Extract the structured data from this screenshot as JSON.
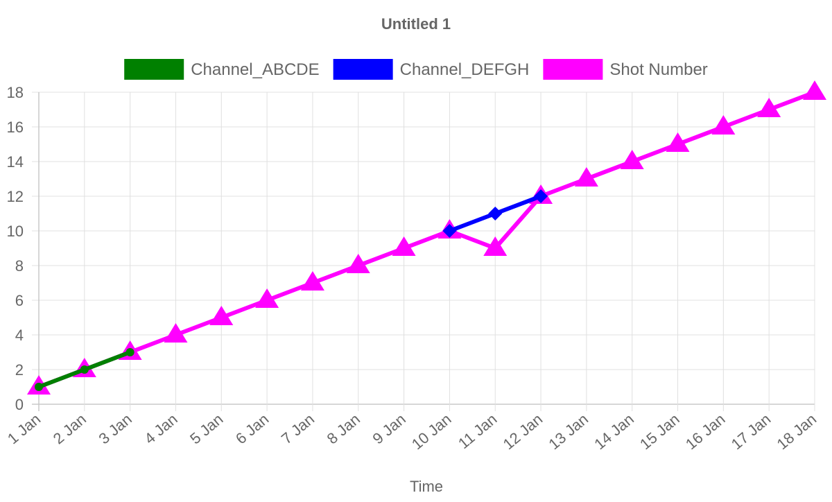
{
  "chart_data": {
    "type": "line",
    "title": "Untitled 1",
    "xlabel": "Time",
    "ylabel": "",
    "ylim": [
      0,
      18
    ],
    "y_ticks": [
      0,
      2,
      4,
      6,
      8,
      10,
      12,
      14,
      16,
      18
    ],
    "categories": [
      "1 Jan",
      "2 Jan",
      "3 Jan",
      "4 Jan",
      "5 Jan",
      "6 Jan",
      "7 Jan",
      "8 Jan",
      "9 Jan",
      "10 Jan",
      "11 Jan",
      "12 Jan",
      "13 Jan",
      "14 Jan",
      "15 Jan",
      "16 Jan",
      "17 Jan",
      "18 Jan"
    ],
    "grid": true,
    "legend_position": "top",
    "series": [
      {
        "name": "Shot Number",
        "color": "#ff00ff",
        "marker": "triangle",
        "points": [
          {
            "x": "1 Jan",
            "y": 1
          },
          {
            "x": "2 Jan",
            "y": 2
          },
          {
            "x": "3 Jan",
            "y": 3
          },
          {
            "x": "4 Jan",
            "y": 4
          },
          {
            "x": "5 Jan",
            "y": 5
          },
          {
            "x": "6 Jan",
            "y": 6
          },
          {
            "x": "7 Jan",
            "y": 7
          },
          {
            "x": "8 Jan",
            "y": 8
          },
          {
            "x": "9 Jan",
            "y": 9
          },
          {
            "x": "10 Jan",
            "y": 10
          },
          {
            "x": "11 Jan",
            "y": 9
          },
          {
            "x": "12 Jan",
            "y": 12
          },
          {
            "x": "13 Jan",
            "y": 13
          },
          {
            "x": "14 Jan",
            "y": 14
          },
          {
            "x": "15 Jan",
            "y": 15
          },
          {
            "x": "16 Jan",
            "y": 16
          },
          {
            "x": "17 Jan",
            "y": 17
          },
          {
            "x": "18 Jan",
            "y": 18
          }
        ]
      },
      {
        "name": "Channel_ABCDE",
        "color": "#008000",
        "marker": "circle",
        "points": [
          {
            "x": "1 Jan",
            "y": 1
          },
          {
            "x": "2 Jan",
            "y": 2
          },
          {
            "x": "3 Jan",
            "y": 3
          }
        ]
      },
      {
        "name": "Channel_DEFGH",
        "color": "#0000ff",
        "marker": "diamond",
        "points": [
          {
            "x": "10 Jan",
            "y": 10
          },
          {
            "x": "11 Jan",
            "y": 11
          },
          {
            "x": "12 Jan",
            "y": 12
          }
        ]
      }
    ],
    "legend_order": [
      "Channel_ABCDE",
      "Channel_DEFGH",
      "Shot Number"
    ]
  }
}
